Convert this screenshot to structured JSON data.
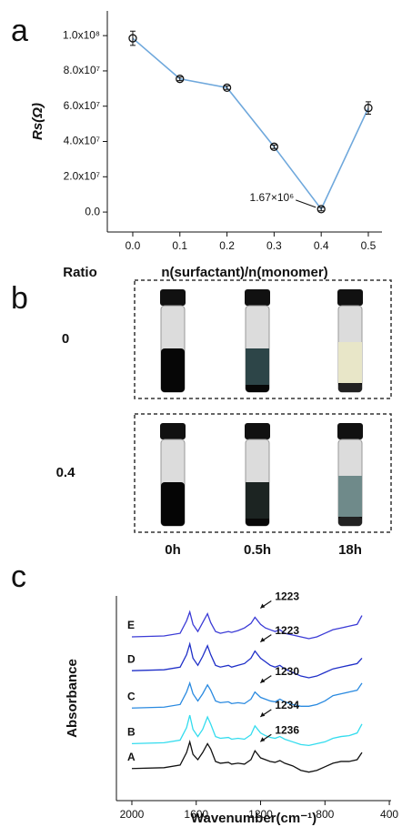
{
  "chart_data": [
    {
      "type": "line",
      "panel": "a",
      "x_label": "n(surfactant)/n(monomer)",
      "y_label": "Rs(Ω)",
      "x": [
        0.0,
        0.1,
        0.2,
        0.3,
        0.4,
        0.5
      ],
      "values": [
        98500000,
        75500000,
        70500000,
        37000000,
        1670000,
        59000000
      ],
      "errors": [
        4000000,
        1000000,
        1000000,
        1000000,
        1000000,
        3500000
      ],
      "color": "#6fa8dc",
      "annotation": "1.67×10⁶",
      "xlim": [
        -0.054,
        0.529
      ],
      "xticks": [
        {
          "value": 0,
          "label": "0.0"
        },
        0.1,
        0.2,
        0.3,
        0.4,
        0.5
      ],
      "ylim": [
        -11300000,
        114000000
      ],
      "yticks": [
        {
          "value": 0,
          "label": "0.0"
        },
        {
          "value": 20000000,
          "label": "2.0x10⁷"
        },
        {
          "value": 40000000,
          "label": "4.0x10⁷"
        },
        {
          "value": 60000000,
          "label": "6.0x10⁷"
        },
        {
          "value": 80000000,
          "label": "8.0x10⁷"
        },
        {
          "value": 100000000,
          "label": "1.0x10⁸"
        }
      ]
    },
    {
      "type": "line",
      "panel": "c",
      "x_label": "Wavenumber(cm⁻¹)",
      "y_label": "Absorbance",
      "x": [
        2000,
        1800,
        1700,
        1660,
        1640,
        1620,
        1590,
        1560,
        1530,
        1510,
        1480,
        1450,
        1400,
        1380,
        1340,
        1300,
        1260,
        1235,
        1200,
        1170,
        1140,
        1110,
        1080,
        1050,
        1000,
        950,
        900,
        850,
        800,
        750,
        700,
        650,
        600,
        570
      ],
      "series": [
        {
          "name": "A",
          "color": "#111111",
          "values": [
            1.8,
            1.85,
            2.0,
            2.7,
            3.3,
            2.6,
            2.3,
            2.7,
            3.2,
            2.9,
            2.2,
            2.1,
            2.15,
            2.05,
            2.1,
            2.05,
            2.3,
            2.8,
            2.4,
            2.3,
            2.2,
            2.15,
            2.25,
            2.1,
            1.95,
            1.7,
            1.6,
            1.7,
            1.9,
            2.1,
            2.2,
            2.2,
            2.3,
            2.7
          ]
        },
        {
          "name": "B",
          "color": "#33dcee",
          "values": [
            3.2,
            3.25,
            3.4,
            4.1,
            4.8,
            4.0,
            3.6,
            4.0,
            4.7,
            4.3,
            3.6,
            3.5,
            3.55,
            3.45,
            3.5,
            3.45,
            3.7,
            4.2,
            3.8,
            3.65,
            3.55,
            3.5,
            3.6,
            3.45,
            3.3,
            3.15,
            3.1,
            3.2,
            3.3,
            3.5,
            3.6,
            3.65,
            3.8,
            4.3
          ]
        },
        {
          "name": "C",
          "color": "#2a8ae0",
          "values": [
            5.2,
            5.25,
            5.4,
            6.1,
            6.6,
            6.0,
            5.6,
            6.0,
            6.5,
            6.2,
            5.6,
            5.5,
            5.55,
            5.45,
            5.5,
            5.45,
            5.7,
            6.1,
            5.8,
            5.7,
            5.6,
            5.55,
            5.7,
            5.55,
            5.4,
            5.3,
            5.3,
            5.4,
            5.6,
            5.9,
            6.0,
            6.1,
            6.2,
            6.6
          ]
        },
        {
          "name": "D",
          "color": "#1f2fc8",
          "values": [
            7.3,
            7.35,
            7.5,
            8.2,
            8.8,
            8.0,
            7.6,
            8.1,
            8.7,
            8.2,
            7.6,
            7.5,
            7.6,
            7.5,
            7.6,
            7.7,
            8.0,
            8.4,
            8.0,
            7.8,
            7.6,
            7.5,
            7.6,
            7.4,
            7.2,
            7.0,
            6.9,
            7.0,
            7.2,
            7.4,
            7.5,
            7.6,
            7.7,
            8.0
          ]
        },
        {
          "name": "E",
          "color": "#3b3bd6",
          "values": [
            9.2,
            9.25,
            9.4,
            10.1,
            10.6,
            9.9,
            9.5,
            10.0,
            10.5,
            10.0,
            9.5,
            9.4,
            9.5,
            9.45,
            9.55,
            9.7,
            9.95,
            10.3,
            9.9,
            9.7,
            9.6,
            9.5,
            9.6,
            9.4,
            9.3,
            9.2,
            9.1,
            9.2,
            9.4,
            9.6,
            9.7,
            9.8,
            9.9,
            10.4
          ]
        }
      ],
      "annotations": [
        "1236",
        "1234",
        "1230",
        "1223",
        "1223"
      ],
      "xlim": [
        2096,
        389
      ],
      "xticks": [
        2000,
        1600,
        1200,
        800,
        400
      ],
      "ylim": [
        0,
        11.5
      ]
    }
  ],
  "photo_panel": {
    "panel": "b",
    "row_header": "Ratio",
    "rows": [
      "0",
      "0.4"
    ],
    "columns": [
      "0h",
      "0.5h",
      "18h"
    ]
  }
}
